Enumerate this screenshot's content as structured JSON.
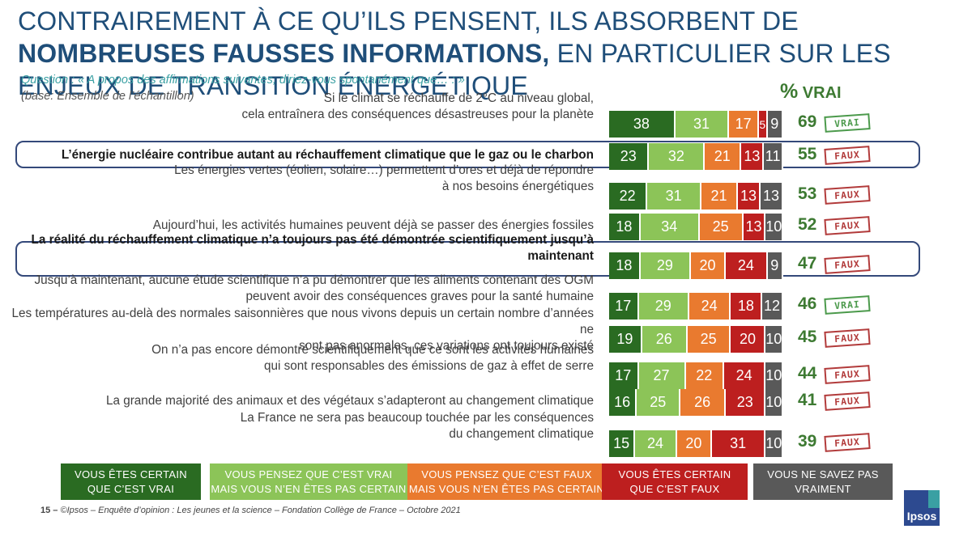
{
  "title": {
    "part1": "CONTRAIREMENT À CE QU’ILS PENSENT, ILS ABSORBENT DE ",
    "bold1": "NOMBREUSES FAUSSES INFORMATIONS,",
    "part2": " EN PARTICULIER SUR LES ENJEUX DE TRANSITION ÉNERGÉTIQUE"
  },
  "question": "Question : « A propos des affirmations suivantes, diriez-vous spontanément que… : »",
  "base": "(base: Ensemble de l’échantillon)",
  "pct_header": {
    "symbol": "%",
    "label": "VRAI"
  },
  "colors": {
    "certain_vrai": "#2a6b22",
    "pense_vrai": "#8cc458",
    "pense_faux": "#e97a2f",
    "certain_faux": "#bd1f1f",
    "ne_sait_pas": "#595959"
  },
  "chart_data": {
    "type": "bar",
    "orientation": "horizontal-stacked",
    "categories": [
      "Si le climat se réchauffe de 2°C au niveau global, cela entraînera des conséquences désastreuses pour la planète",
      "L’énergie nucléaire contribue autant au réchauffement climatique que le gaz ou le charbon",
      "Les énergies vertes (éolien, solaire…) permettent d’ores et déjà de répondre à nos besoins énergétiques",
      "Aujourd’hui, les activités humaines peuvent déjà se passer des énergies fossiles",
      "La réalité du réchauffement climatique n’a toujours pas été démontrée scientifiquement jusqu’à maintenant",
      "Jusqu’à maintenant, aucune étude scientifique n’a pu démontrer que les aliments contenant des OGM peuvent avoir des conséquences graves pour la santé humaine",
      "Les températures au-delà des normales saisonnières que nous vivons depuis un certain nombre d’années ne sont pas anormales, ces variations ont toujours existé",
      "On n’a pas encore démontré scientifiquement que ce sont les activités humaines qui sont responsables des émissions de gaz à effet de serre",
      "La grande majorité des animaux et des végétaux s’adapteront au changement climatique",
      "La France ne sera pas beaucoup touchée par les conséquences du changement climatique"
    ],
    "label_lines": [
      [
        "Si le climat se réchauffe de 2°C au niveau global,",
        "cela entraînera des conséquences désastreuses pour la planète"
      ],
      [
        "L’énergie nucléaire contribue autant au réchauffement climatique que le gaz ou le charbon"
      ],
      [
        "Les énergies vertes (éolien, solaire…) permettent d’ores et déjà de répondre",
        "à nos besoins énergétiques"
      ],
      [
        "Aujourd’hui, les activités humaines peuvent déjà se passer des énergies fossiles"
      ],
      [
        "La réalité du réchauffement climatique n’a toujours pas été démontrée scientifiquement jusqu’à",
        "maintenant"
      ],
      [
        "Jusqu’à maintenant, aucune étude scientifique n’a pu démontrer que les aliments contenant des OGM",
        "peuvent avoir des conséquences graves pour la santé humaine"
      ],
      [
        "Les températures au-delà des normales saisonnières que nous vivons depuis un certain nombre d’années ne",
        "sont pas anormales, ces variations ont toujours existé"
      ],
      [
        "On n’a pas encore démontré scientifiquement que ce sont les activités humaines",
        "qui sont responsables des émissions de gaz à effet de serre"
      ],
      [
        "La grande majorité des animaux et des végétaux s’adapteront au changement climatique"
      ],
      [
        "La France ne sera pas beaucoup touchée par les conséquences",
        "du changement climatique"
      ]
    ],
    "highlighted": [
      false,
      true,
      false,
      false,
      true,
      false,
      false,
      false,
      false,
      false
    ],
    "series": [
      {
        "name": "VOUS ÊTES CERTAIN QUE C’EST VRAI",
        "legend_lines": [
          "VOUS ÊTES CERTAIN",
          "QUE C’EST VRAI"
        ],
        "color": "#2a6b22",
        "values": [
          38,
          23,
          22,
          18,
          18,
          17,
          19,
          17,
          16,
          15
        ]
      },
      {
        "name": "VOUS PENSEZ QUE C’EST VRAI MAIS VOUS N’EN ÊTES PAS CERTAIN",
        "legend_lines": [
          "VOUS PENSEZ QUE C’EST VRAI",
          "MAIS VOUS N’EN ÊTES PAS CERTAIN"
        ],
        "color": "#8cc458",
        "values": [
          31,
          32,
          31,
          34,
          29,
          29,
          26,
          27,
          25,
          24
        ]
      },
      {
        "name": "VOUS PENSEZ QUE C’EST FAUX MAIS VOUS N’EN ÊTES PAS CERTAIN",
        "legend_lines": [
          "VOUS PENSEZ QUE C’EST FAUX",
          "MAIS VOUS N’EN ÊTES PAS CERTAIN"
        ],
        "color": "#e97a2f",
        "values": [
          17,
          21,
          21,
          25,
          20,
          24,
          25,
          22,
          26,
          20
        ]
      },
      {
        "name": "VOUS ÊTES CERTAIN QUE C’EST FAUX",
        "legend_lines": [
          "VOUS ÊTES CERTAIN",
          "QUE C’EST FAUX"
        ],
        "color": "#bd1f1f",
        "values": [
          5,
          13,
          13,
          13,
          24,
          18,
          20,
          24,
          23,
          31
        ]
      },
      {
        "name": "VOUS NE SAVEZ PAS VRAIMENT",
        "legend_lines": [
          "VOUS NE SAVEZ PAS",
          "VRAIMENT"
        ],
        "color": "#595959",
        "values": [
          9,
          11,
          13,
          10,
          9,
          12,
          10,
          10,
          10,
          10
        ]
      }
    ],
    "pct_vrai": [
      69,
      55,
      53,
      52,
      47,
      46,
      45,
      44,
      41,
      39
    ],
    "verdict": [
      "VRAI",
      "FAUX",
      "FAUX",
      "FAUX",
      "FAUX",
      "VRAI",
      "FAUX",
      "FAUX",
      "FAUX",
      "FAUX"
    ],
    "xlim": [
      0,
      100
    ]
  },
  "footer": {
    "page": "15 –",
    "source": "©Ipsos – Enquête d’opinion : Les jeunes et la science – Fondation Collège de France – Octobre 2021"
  },
  "logo": "Ipsos"
}
